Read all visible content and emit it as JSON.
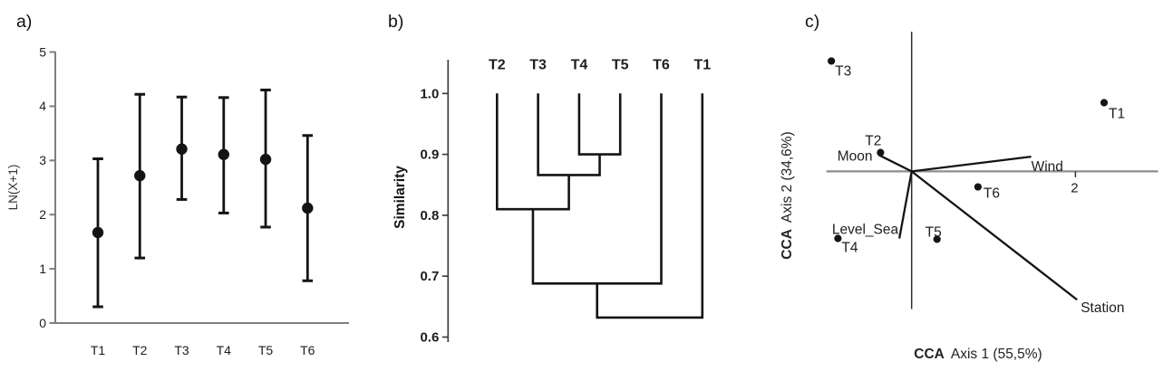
{
  "figure": {
    "panels": [
      {
        "letter": "a)"
      },
      {
        "letter": "b)"
      },
      {
        "letter": "c)"
      }
    ]
  },
  "colors": {
    "axis_gray": "#7f7f7f",
    "axis_gray_light": "#8c8c8c",
    "axis_dark": "#3f3f3f",
    "data_ink": "#141414",
    "tick_text": "#3a3a3a",
    "label_text": "#1d1d1d"
  },
  "chart_data": [
    {
      "panel": "a",
      "type": "scatter",
      "subtype": "mean-with-error-bars",
      "title": "",
      "xlabel": "",
      "ylabel": "LN(X+1)",
      "categories": [
        "T1",
        "T2",
        "T3",
        "T4",
        "T5",
        "T6"
      ],
      "series": [
        {
          "name": "mean",
          "values": [
            1.67,
            2.72,
            3.21,
            3.11,
            3.02,
            2.12
          ]
        }
      ],
      "error_low": [
        0.3,
        1.2,
        2.28,
        2.03,
        1.77,
        0.78
      ],
      "error_high": [
        3.03,
        4.22,
        4.17,
        4.16,
        4.3,
        3.46
      ],
      "ylim": [
        0,
        5
      ],
      "yticks": [
        "0",
        "1",
        "2",
        "3",
        "4",
        "5"
      ],
      "grid": false,
      "legend": "none"
    },
    {
      "panel": "b",
      "type": "dendrogram",
      "title": "",
      "ylabel": "Similarity",
      "leaves": [
        "T2",
        "T3",
        "T4",
        "T5",
        "T6",
        "T1"
      ],
      "yticks": [
        "1.0",
        "0.9",
        "0.8",
        "0.7",
        "0.6"
      ],
      "ylim": [
        0.6,
        1.055
      ],
      "merges": [
        {
          "a": 2,
          "b": 3,
          "similarity": 0.9,
          "members": "T4,T5"
        },
        {
          "a": 6,
          "b": 1,
          "similarity": 0.866,
          "members": "T3,T4,T5"
        },
        {
          "a": 7,
          "b": 0,
          "similarity": 0.81,
          "members": "T2,T3,T4,T5"
        },
        {
          "a": 8,
          "b": 4,
          "similarity": 0.688,
          "members": "T2,T3,T4,T5,T6"
        },
        {
          "a": 9,
          "b": 5,
          "similarity": 0.632,
          "members": "T1,T2,T3,T4,T5,T6"
        }
      ],
      "grid": false,
      "legend": "none"
    },
    {
      "panel": "c",
      "type": "scatter",
      "subtype": "cca-biplot",
      "title": "",
      "xlabel": {
        "bold": "CCA",
        "rest": "Axis 1 (55,5%)"
      },
      "ylabel": {
        "bold": "CCA",
        "rest": "Axis 2 (34,6%)"
      },
      "points": [
        {
          "label": "T3",
          "x": -0.98,
          "y": 1.35
        },
        {
          "label": "T1",
          "x": 2.35,
          "y": 0.84
        },
        {
          "label": "T2",
          "x": -0.38,
          "y": 0.23
        },
        {
          "label": "T6",
          "x": 0.81,
          "y": -0.19
        },
        {
          "label": "T5",
          "x": 0.31,
          "y": -0.83
        },
        {
          "label": "T4",
          "x": -0.9,
          "y": -0.82
        }
      ],
      "vectors": [
        {
          "label": "Wind",
          "x": 1.46,
          "y": 0.18
        },
        {
          "label": "Moon",
          "x": -0.4,
          "y": 0.2
        },
        {
          "label": "Level_Sea",
          "x": -0.15,
          "y": -0.82
        },
        {
          "label": "Station",
          "x": 2.02,
          "y": -1.57
        }
      ],
      "xticks": [
        {
          "value": 2,
          "label": "2"
        }
      ],
      "xlim": [
        -1.05,
        3.0
      ],
      "ylim": [
        -1.7,
        1.72
      ],
      "grid": false,
      "legend": "none"
    }
  ]
}
